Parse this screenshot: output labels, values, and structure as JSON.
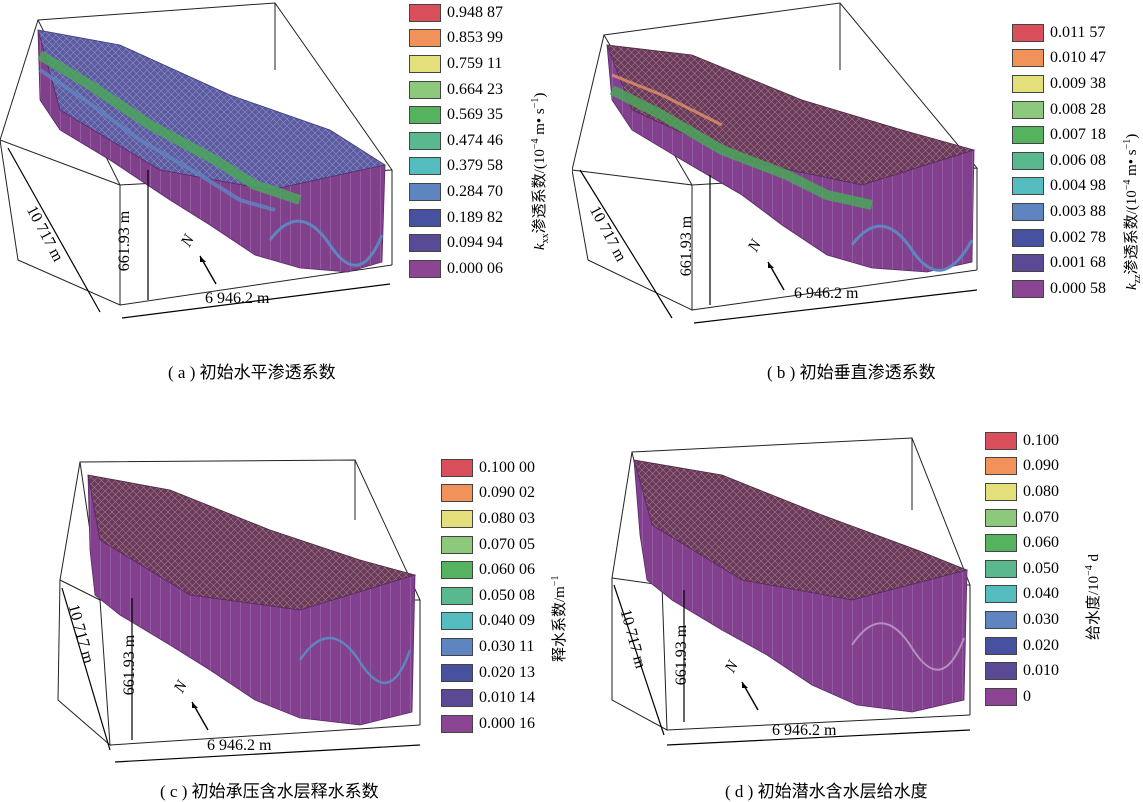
{
  "palette": [
    "#d94f5c",
    "#f0925a",
    "#e3df7a",
    "#8cc97c",
    "#55b25e",
    "#5ab88e",
    "#55bcc0",
    "#5f85c0",
    "#4652a0",
    "#5a4a96",
    "#8b4593"
  ],
  "panels": {
    "a": {
      "caption": "( a ) 初始水平渗透系数",
      "length": "10 717 m",
      "height": "661.93 m",
      "width": "6 946.2 m",
      "north": "N",
      "units_symbol": "k",
      "units_sub": "xx",
      "units_text": "渗透系数/(10",
      "units_exp1": "−4",
      "units_mid": " m• s",
      "units_exp2": "−1",
      "units_close": ")",
      "legend": [
        "0.948 87",
        "0.853 99",
        "0.759 11",
        "0.664 23",
        "0.569 35",
        "0.474 46",
        "0.379 58",
        "0.284 70",
        "0.189 82",
        "0.094 94",
        "0.000 06"
      ]
    },
    "b": {
      "caption": "( b ) 初始垂直渗透系数",
      "length": "10 717 m",
      "height": "661.93 m",
      "width": "6 946.2 m",
      "north": "N",
      "units_symbol": "k",
      "units_sub": "zz",
      "units_text": "渗透系数/(10",
      "units_exp1": "−4",
      "units_mid": " m• s",
      "units_exp2": "−1",
      "units_close": ")",
      "legend": [
        "0.011 57",
        "0.010 47",
        "0.009 38",
        "0.008 28",
        "0.007 18",
        "0.006 08",
        "0.004 98",
        "0.003 88",
        "0.002 78",
        "0.001 68",
        "0.000 58"
      ]
    },
    "c": {
      "caption": "( c ) 初始承压含水层释水系数",
      "length": "10 717 m",
      "height": "661.93 m",
      "width": "6 946.2 m",
      "north": "N",
      "units_text": "释水系数/m",
      "units_exp": "−1",
      "legend": [
        "0.100 00",
        "0.090 02",
        "0.080 03",
        "0.070 05",
        "0.060 06",
        "0.050 08",
        "0.040 09",
        "0.030 11",
        "0.020 13",
        "0.010 14",
        "0.000 16"
      ]
    },
    "d": {
      "caption": "( d ) 初始潜水含水层给水度",
      "length": "10 717 m",
      "height": "661.93 m",
      "width": "6 946.2 m",
      "north": "N",
      "units_text": "给水度/10",
      "units_exp": "−4",
      "units_tail": " d",
      "legend": [
        "0.100",
        "0.090",
        "0.080",
        "0.070",
        "0.060",
        "0.050",
        "0.040",
        "0.030",
        "0.020",
        "0.010",
        "0"
      ]
    }
  }
}
